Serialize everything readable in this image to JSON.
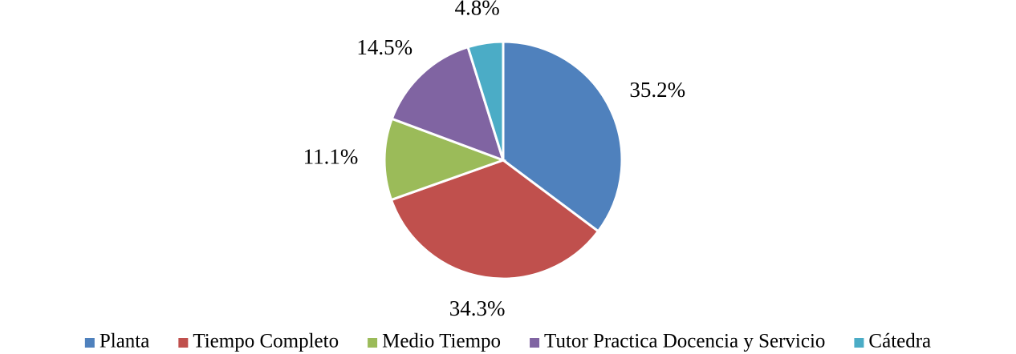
{
  "chart_data": {
    "type": "pie",
    "categories": [
      "Planta",
      "Tiempo Completo",
      "Medio Tiempo",
      "Tutor Practica Docencia y Servicio",
      "Cátedra"
    ],
    "values": [
      35.2,
      34.3,
      11.1,
      14.5,
      4.8
    ],
    "value_labels": [
      "35.2%",
      "34.3%",
      "11.1%",
      "14.5%",
      "4.8%"
    ],
    "colors": [
      "#4f81bd",
      "#c0504d",
      "#9bbb59",
      "#8064a2",
      "#4bacc6"
    ],
    "legend": "bottom"
  }
}
